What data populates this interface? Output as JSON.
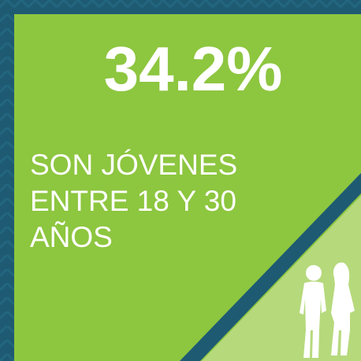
{
  "stat": "34.2%",
  "description": [
    "SON JÓVENES",
    "ENTRE 18 Y 30",
    "AÑOS"
  ]
}
